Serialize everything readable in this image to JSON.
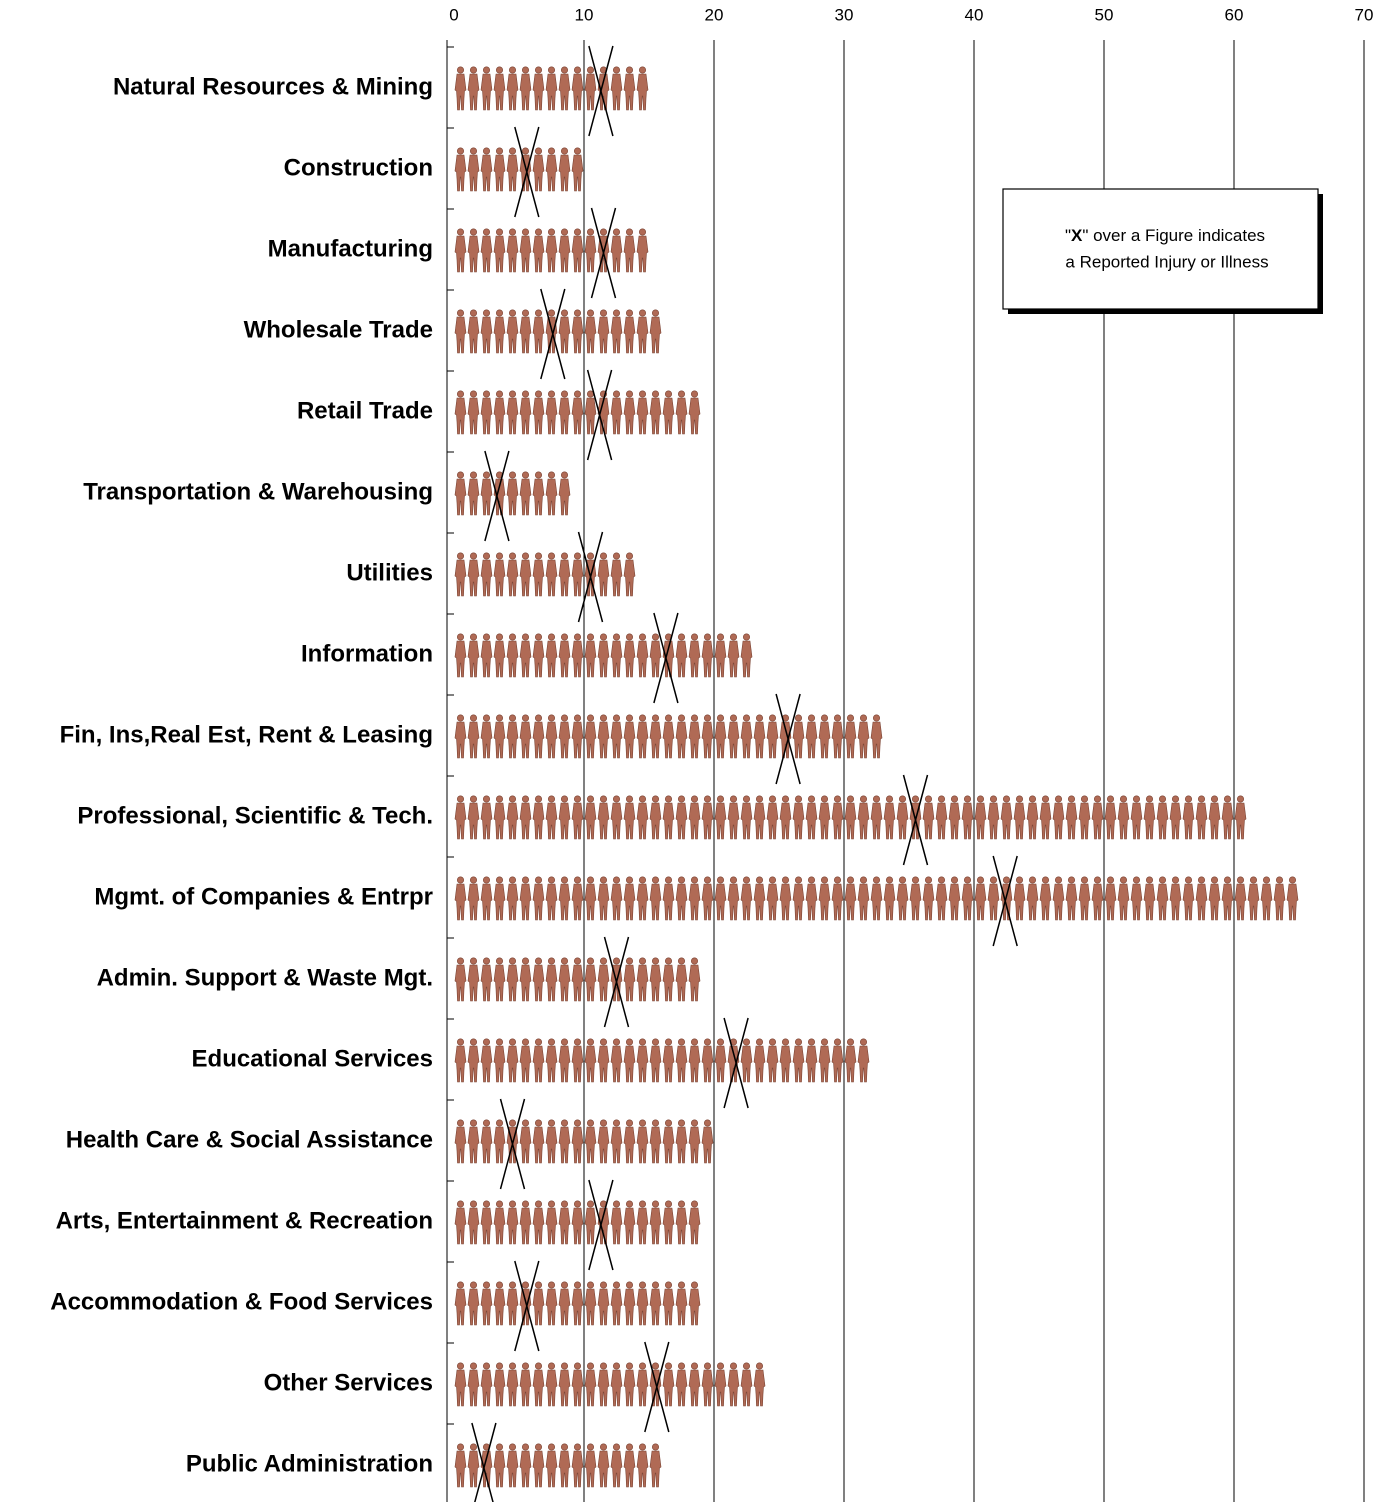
{
  "chart_data": {
    "type": "pictograph",
    "categories": [
      "Natural Resources & Mining",
      "Construction",
      "Manufacturing",
      "Wholesale Trade",
      "Retail Trade",
      "Transportation & Warehousing",
      "Utilities",
      "Information",
      "Fin, Ins,Real Est, Rent & Leasing",
      "Professional, Scientific & Tech.",
      "Mgmt. of Companies & Entrpr",
      "Admin. Support & Waste Mgt.",
      "Educational Services",
      "Health Care & Social Assistance",
      "Arts, Entertainment & Recreation",
      "Accommodation & Food Services",
      "Other Services",
      "Public Administration"
    ],
    "values": [
      15,
      10,
      15,
      16,
      19,
      9,
      14,
      23,
      33,
      61,
      65,
      19,
      32,
      20,
      19,
      19,
      24,
      16
    ],
    "markers": [
      11.3,
      5.6,
      11.5,
      7.6,
      11.2,
      3.3,
      10.5,
      16.3,
      25.7,
      35.5,
      42.4,
      12.5,
      21.7,
      4.5,
      11.3,
      5.6,
      15.6,
      2.3
    ],
    "color": "#b06a55",
    "xlim": [
      0,
      70
    ],
    "xticks": [
      0,
      10,
      20,
      30,
      40,
      50,
      60,
      70
    ],
    "grid": true,
    "annotation": [
      "\"",
      "X",
      "\" over a Figure indicates",
      "a Reported Injury or Illness"
    ]
  }
}
